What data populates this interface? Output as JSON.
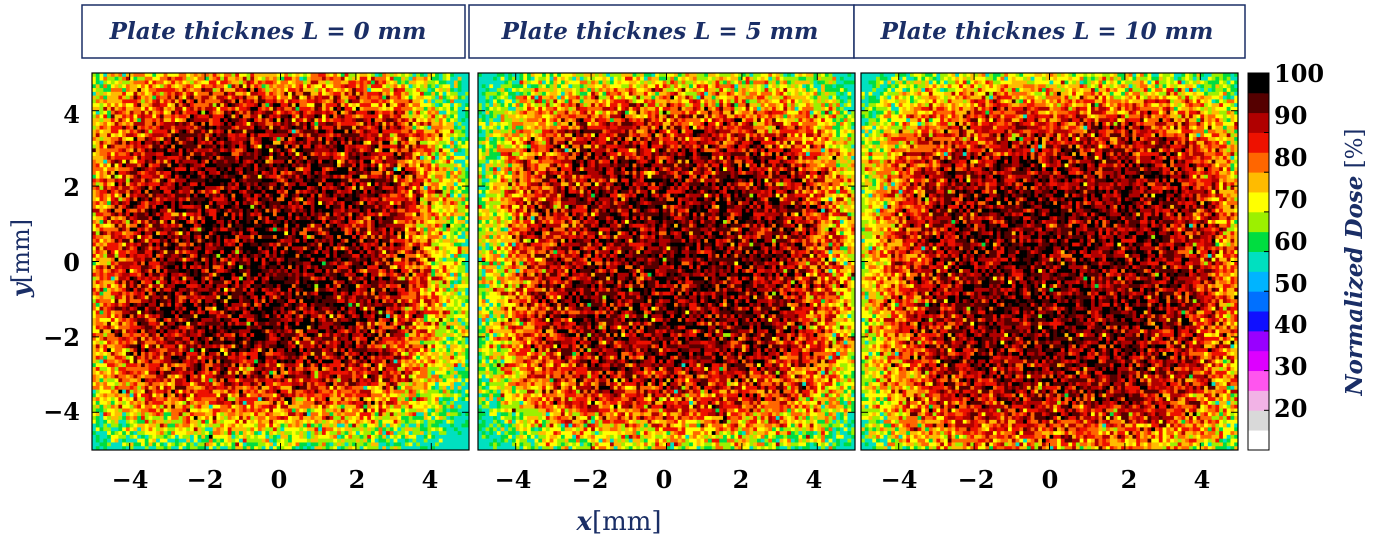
{
  "chart_data": {
    "type": "heatmap",
    "xlabel": "x",
    "xlabel_unit": "[mm]",
    "ylabel": "y",
    "ylabel_unit": "[mm]",
    "xlim": [
      -5,
      5
    ],
    "ylim": [
      -5,
      5
    ],
    "x_ticks": [
      -4,
      -2,
      0,
      2,
      4
    ],
    "y_ticks": [
      4,
      2,
      0,
      -2,
      -4
    ],
    "x_tick_labels": [
      "−4",
      "−2",
      "0",
      "2",
      "4"
    ],
    "y_tick_labels": [
      "4",
      "2",
      "0",
      "−2",
      "−4"
    ],
    "colorbar": {
      "label": "Normalized Dose",
      "unit": "[%]",
      "range": [
        10,
        100
      ],
      "tick_values": [
        100,
        90,
        80,
        70,
        60,
        50,
        40,
        30,
        20
      ],
      "tick_labels": [
        "100",
        "90",
        "80",
        "70",
        "60",
        "50",
        "40",
        "30",
        "20"
      ],
      "bins": [
        {
          "from": 10,
          "to": 15,
          "color": "#ffffff"
        },
        {
          "from": 15,
          "to": 20,
          "color": "#d9d9d9"
        },
        {
          "from": 20,
          "to": 25,
          "color": "#f2b3e6"
        },
        {
          "from": 25,
          "to": 30,
          "color": "#ff55ee"
        },
        {
          "from": 30,
          "to": 35,
          "color": "#dd00ff"
        },
        {
          "from": 35,
          "to": 40,
          "color": "#9900ff"
        },
        {
          "from": 40,
          "to": 45,
          "color": "#1010ff"
        },
        {
          "from": 45,
          "to": 50,
          "color": "#0070ff"
        },
        {
          "from": 50,
          "to": 55,
          "color": "#00b4ff"
        },
        {
          "from": 55,
          "to": 60,
          "color": "#00e0c0"
        },
        {
          "from": 60,
          "to": 65,
          "color": "#00dd40"
        },
        {
          "from": 65,
          "to": 70,
          "color": "#9cf000"
        },
        {
          "from": 70,
          "to": 75,
          "color": "#ffff00"
        },
        {
          "from": 75,
          "to": 80,
          "color": "#ffbb00"
        },
        {
          "from": 80,
          "to": 85,
          "color": "#ff6600"
        },
        {
          "from": 85,
          "to": 90,
          "color": "#ee1100"
        },
        {
          "from": 90,
          "to": 95,
          "color": "#b00000"
        },
        {
          "from": 95,
          "to": 100,
          "color": "#550000"
        },
        {
          "from": 100,
          "to": 105,
          "color": "#000000"
        }
      ]
    },
    "panels": [
      {
        "title": "Plate thicknes L = 0 mm"
      },
      {
        "title": "Plate thicknes L = 5 mm"
      },
      {
        "title": "Plate thicknes L = 10 mm"
      }
    ]
  }
}
